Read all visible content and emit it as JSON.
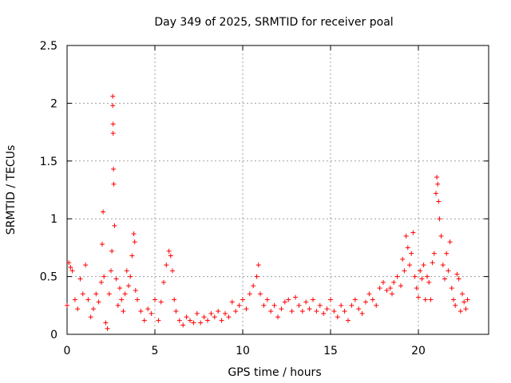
{
  "chart_data": {
    "type": "scatter",
    "title": "Day 349 of 2025, SRMTID for receiver poal",
    "xlabel": "GPS time / hours",
    "ylabel": "SRMTID / TECUs",
    "xlim": [
      0,
      24
    ],
    "ylim": [
      0,
      2.5
    ],
    "grid": true,
    "marker": "+",
    "color": "#ff0000",
    "x_ticks": [
      0,
      5,
      10,
      15,
      20
    ],
    "y_ticks": [
      0,
      0.5,
      1,
      1.5,
      2,
      2.5
    ],
    "x_tick_labels": [
      "0",
      "5",
      "10",
      "15",
      "20"
    ],
    "y_tick_labels": [
      "0",
      "0.5",
      "1",
      "1.5",
      "2",
      "2.5"
    ],
    "series": [
      {
        "name": "SRMTID",
        "x": [
          0.0,
          0.1,
          0.2,
          0.3,
          0.45,
          0.6,
          0.75,
          0.9,
          1.05,
          1.2,
          1.35,
          1.5,
          1.65,
          1.8,
          1.95,
          2.0,
          2.05,
          2.1,
          2.2,
          2.3,
          2.4,
          2.5,
          2.55,
          2.6,
          2.6,
          2.62,
          2.62,
          2.64,
          2.66,
          2.7,
          2.8,
          2.9,
          3.0,
          3.1,
          3.2,
          3.3,
          3.4,
          3.5,
          3.6,
          3.7,
          3.8,
          3.85,
          3.9,
          4.0,
          4.2,
          4.4,
          4.6,
          4.8,
          5.0,
          5.2,
          5.35,
          5.5,
          5.65,
          5.8,
          5.9,
          6.0,
          6.1,
          6.2,
          6.4,
          6.6,
          6.8,
          7.0,
          7.2,
          7.4,
          7.6,
          7.8,
          8.0,
          8.2,
          8.4,
          8.6,
          8.8,
          9.0,
          9.2,
          9.4,
          9.6,
          9.8,
          10.0,
          10.2,
          10.4,
          10.6,
          10.8,
          10.9,
          11.0,
          11.2,
          11.4,
          11.6,
          11.8,
          12.0,
          12.2,
          12.4,
          12.6,
          12.8,
          13.0,
          13.2,
          13.4,
          13.6,
          13.8,
          14.0,
          14.2,
          14.4,
          14.6,
          14.8,
          15.0,
          15.2,
          15.4,
          15.6,
          15.8,
          16.0,
          16.2,
          16.4,
          16.6,
          16.8,
          17.0,
          17.2,
          17.4,
          17.6,
          17.8,
          18.0,
          18.2,
          18.4,
          18.5,
          18.6,
          18.8,
          19.0,
          19.1,
          19.2,
          19.3,
          19.4,
          19.5,
          19.6,
          19.7,
          19.8,
          19.9,
          20.0,
          20.1,
          20.2,
          20.3,
          20.4,
          20.5,
          20.6,
          20.7,
          20.8,
          20.9,
          21.0,
          21.05,
          21.1,
          21.15,
          21.2,
          21.3,
          21.4,
          21.5,
          21.6,
          21.7,
          21.8,
          21.9,
          22.0,
          22.1,
          22.2,
          22.3,
          22.4,
          22.5,
          22.6,
          22.7,
          22.8
        ],
        "y": [
          0.25,
          0.62,
          0.58,
          0.55,
          0.3,
          0.22,
          0.48,
          0.35,
          0.6,
          0.3,
          0.15,
          0.22,
          0.35,
          0.28,
          0.45,
          0.78,
          1.06,
          0.5,
          0.1,
          0.05,
          0.35,
          0.55,
          0.72,
          2.06,
          1.98,
          1.82,
          1.74,
          1.43,
          1.3,
          0.94,
          0.48,
          0.25,
          0.4,
          0.3,
          0.2,
          0.35,
          0.55,
          0.42,
          0.5,
          0.68,
          0.87,
          0.8,
          0.38,
          0.3,
          0.2,
          0.12,
          0.22,
          0.18,
          0.3,
          0.12,
          0.28,
          0.45,
          0.6,
          0.72,
          0.68,
          0.55,
          0.3,
          0.2,
          0.12,
          0.08,
          0.15,
          0.12,
          0.1,
          0.18,
          0.1,
          0.15,
          0.12,
          0.18,
          0.15,
          0.2,
          0.12,
          0.18,
          0.15,
          0.28,
          0.2,
          0.25,
          0.3,
          0.22,
          0.35,
          0.42,
          0.5,
          0.6,
          0.35,
          0.25,
          0.3,
          0.2,
          0.25,
          0.15,
          0.22,
          0.28,
          0.3,
          0.2,
          0.32,
          0.25,
          0.2,
          0.28,
          0.22,
          0.3,
          0.2,
          0.25,
          0.18,
          0.22,
          0.3,
          0.2,
          0.15,
          0.25,
          0.2,
          0.12,
          0.25,
          0.3,
          0.22,
          0.18,
          0.28,
          0.35,
          0.3,
          0.25,
          0.4,
          0.45,
          0.38,
          0.4,
          0.35,
          0.45,
          0.5,
          0.42,
          0.65,
          0.55,
          0.85,
          0.75,
          0.6,
          0.7,
          0.88,
          0.5,
          0.4,
          0.32,
          0.55,
          0.48,
          0.6,
          0.3,
          0.5,
          0.45,
          0.3,
          0.62,
          0.7,
          1.22,
          1.36,
          1.3,
          1.15,
          1.0,
          0.85,
          0.6,
          0.48,
          0.7,
          0.55,
          0.8,
          0.4,
          0.3,
          0.25,
          0.52,
          0.48,
          0.2,
          0.35,
          0.28,
          0.22,
          0.3
        ]
      }
    ],
    "annotations": []
  }
}
